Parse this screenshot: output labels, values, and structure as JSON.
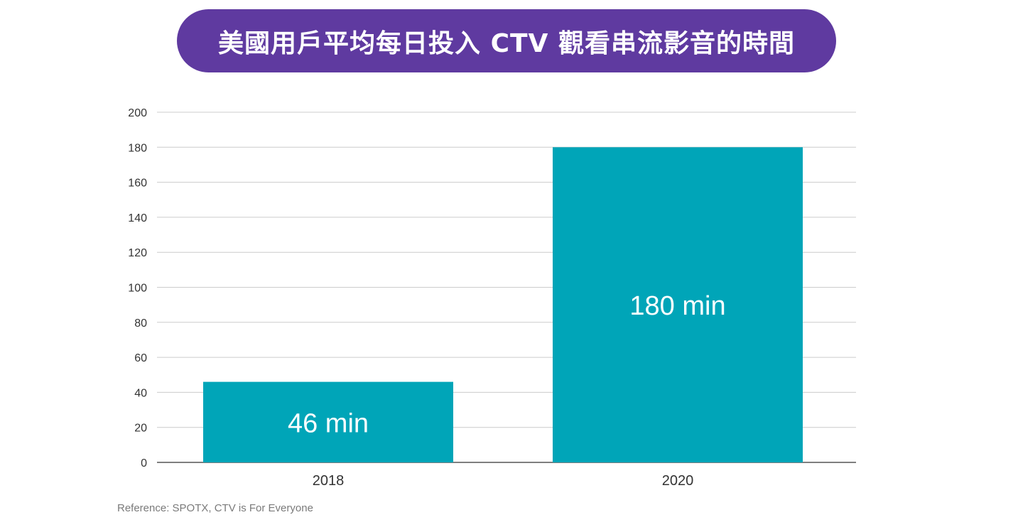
{
  "title": "美國用戶平均每日投入 CTV 觀看串流影音的時間",
  "reference": "Reference: SPOTX, CTV is For Everyone",
  "colors": {
    "title_bg": "#5f3aa0",
    "bar": "#00a5b8",
    "grid": "#cccccc",
    "axis": "#333333",
    "tick_text": "#333333",
    "bar_label": "#ffffff"
  },
  "chart_data": {
    "type": "bar",
    "categories": [
      "2018",
      "2020"
    ],
    "values": [
      46,
      180
    ],
    "data_labels": [
      "46 min",
      "180 min"
    ],
    "ylim": [
      0,
      200
    ],
    "yticks": [
      0,
      20,
      40,
      60,
      80,
      100,
      120,
      140,
      160,
      180,
      200
    ],
    "grid": true,
    "legend": "none"
  }
}
